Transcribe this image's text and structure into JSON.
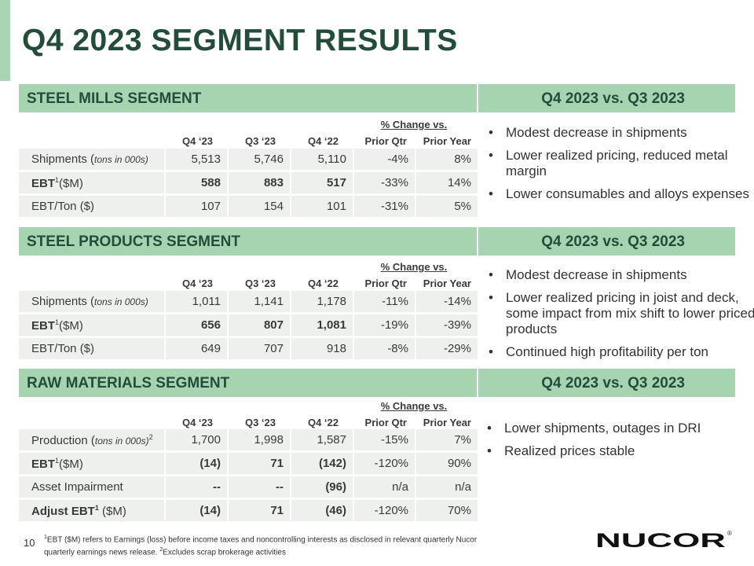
{
  "slide": {
    "title": "Q4 2023 SEGMENT RESULTS",
    "page_number": "10"
  },
  "columns": {
    "q4_23": "Q4 ‘23",
    "q3_23": "Q3 ‘23",
    "q4_22": "Q4 ‘22",
    "pct_change": "% Change vs.",
    "prior_qtr": "Prior Qtr",
    "prior_year": "Prior Year"
  },
  "segments": [
    {
      "name": "STEEL MILLS SEGMENT",
      "compare": "Q4 2023 vs. Q3 2023",
      "rows": [
        {
          "label": "Shipments (",
          "label_small": "tons in 000s)",
          "q4_23": "5,513",
          "q3_23": "5,746",
          "q4_22": "5,110",
          "prior_qtr": "-4%",
          "prior_year": "8%"
        },
        {
          "label": "EBT",
          "label_sup": "1",
          "label_tail": "($M)",
          "q4_23": "588",
          "q3_23": "883",
          "q4_22": "517",
          "prior_qtr": "-33%",
          "prior_year": "14%"
        },
        {
          "label": "EBT/Ton ($)",
          "q4_23": "107",
          "q3_23": "154",
          "q4_22": "101",
          "prior_qtr": "-31%",
          "prior_year": "5%"
        }
      ],
      "bullets": [
        "Modest decrease in shipments",
        "Lower realized pricing, reduced metal margin",
        "Lower consumables and alloys expenses"
      ]
    },
    {
      "name": "STEEL PRODUCTS SEGMENT",
      "compare": "Q4 2023 vs. Q3 2023",
      "rows": [
        {
          "label": "Shipments (",
          "label_small": "tons in 000s)",
          "q4_23": "1,011",
          "q3_23": "1,141",
          "q4_22": "1,178",
          "prior_qtr": "-11%",
          "prior_year": "-14%"
        },
        {
          "label": "EBT",
          "label_sup": "1",
          "label_tail": "($M)",
          "q4_23": "656",
          "q3_23": "807",
          "q4_22": "1,081",
          "prior_qtr": "-19%",
          "prior_year": "-39%"
        },
        {
          "label": "EBT/Ton ($)",
          "q4_23": "649",
          "q3_23": "707",
          "q4_22": "918",
          "prior_qtr": "-8%",
          "prior_year": "-29%"
        }
      ],
      "bullets": [
        "Modest decrease in shipments",
        "Lower realized pricing in joist and deck, some impact from mix shift to lower priced products",
        "Continued high profitability per ton"
      ]
    },
    {
      "name": "RAW MATERIALS SEGMENT",
      "compare": "Q4 2023 vs. Q3 2023",
      "rows": [
        {
          "label": "Production (",
          "label_small": "tons in 000s)",
          "label_sup": "2",
          "q4_23": "1,700",
          "q3_23": "1,998",
          "q4_22": "1,587",
          "prior_qtr": "-15%",
          "prior_year": "7%"
        },
        {
          "label": "EBT",
          "label_sup": "1",
          "label_tail": "($M)",
          "q4_23": "(14)",
          "q3_23": "71",
          "q4_22": "(142)",
          "prior_qtr": "-120%",
          "prior_year": "90%"
        },
        {
          "label": "Asset Impairment",
          "q4_23": "--",
          "q3_23": "--",
          "q4_22": "(96)",
          "prior_qtr": "n/a",
          "prior_year": "n/a"
        },
        {
          "label": "Adjust EBT",
          "label_sup": "1",
          "label_tail": " ($M)",
          "q4_23": "(14)",
          "q3_23": "71",
          "q4_22": "(46)",
          "prior_qtr": "-120%",
          "prior_year": "70%"
        }
      ],
      "bullets": [
        "Lower shipments, outages in DRI",
        "Realized prices stable"
      ]
    }
  ],
  "footnote": {
    "sup1": "1",
    "text1": "EBT ($M) refers to Earnings (loss) before income taxes and noncontrolling interests as disclosed in relevant quarterly Nucor quarterly earnings news release. ",
    "sup2": "2",
    "text2": "Excludes scrap brokerage activities"
  },
  "logo": {
    "text": "NUCOR",
    "mark": "®",
    "color": "#111111"
  },
  "colors": {
    "title": "#234d3a",
    "header_band": "#a6d4b1",
    "accent_bar": "#a8d5b4",
    "row_fill": "#eef0ee"
  }
}
